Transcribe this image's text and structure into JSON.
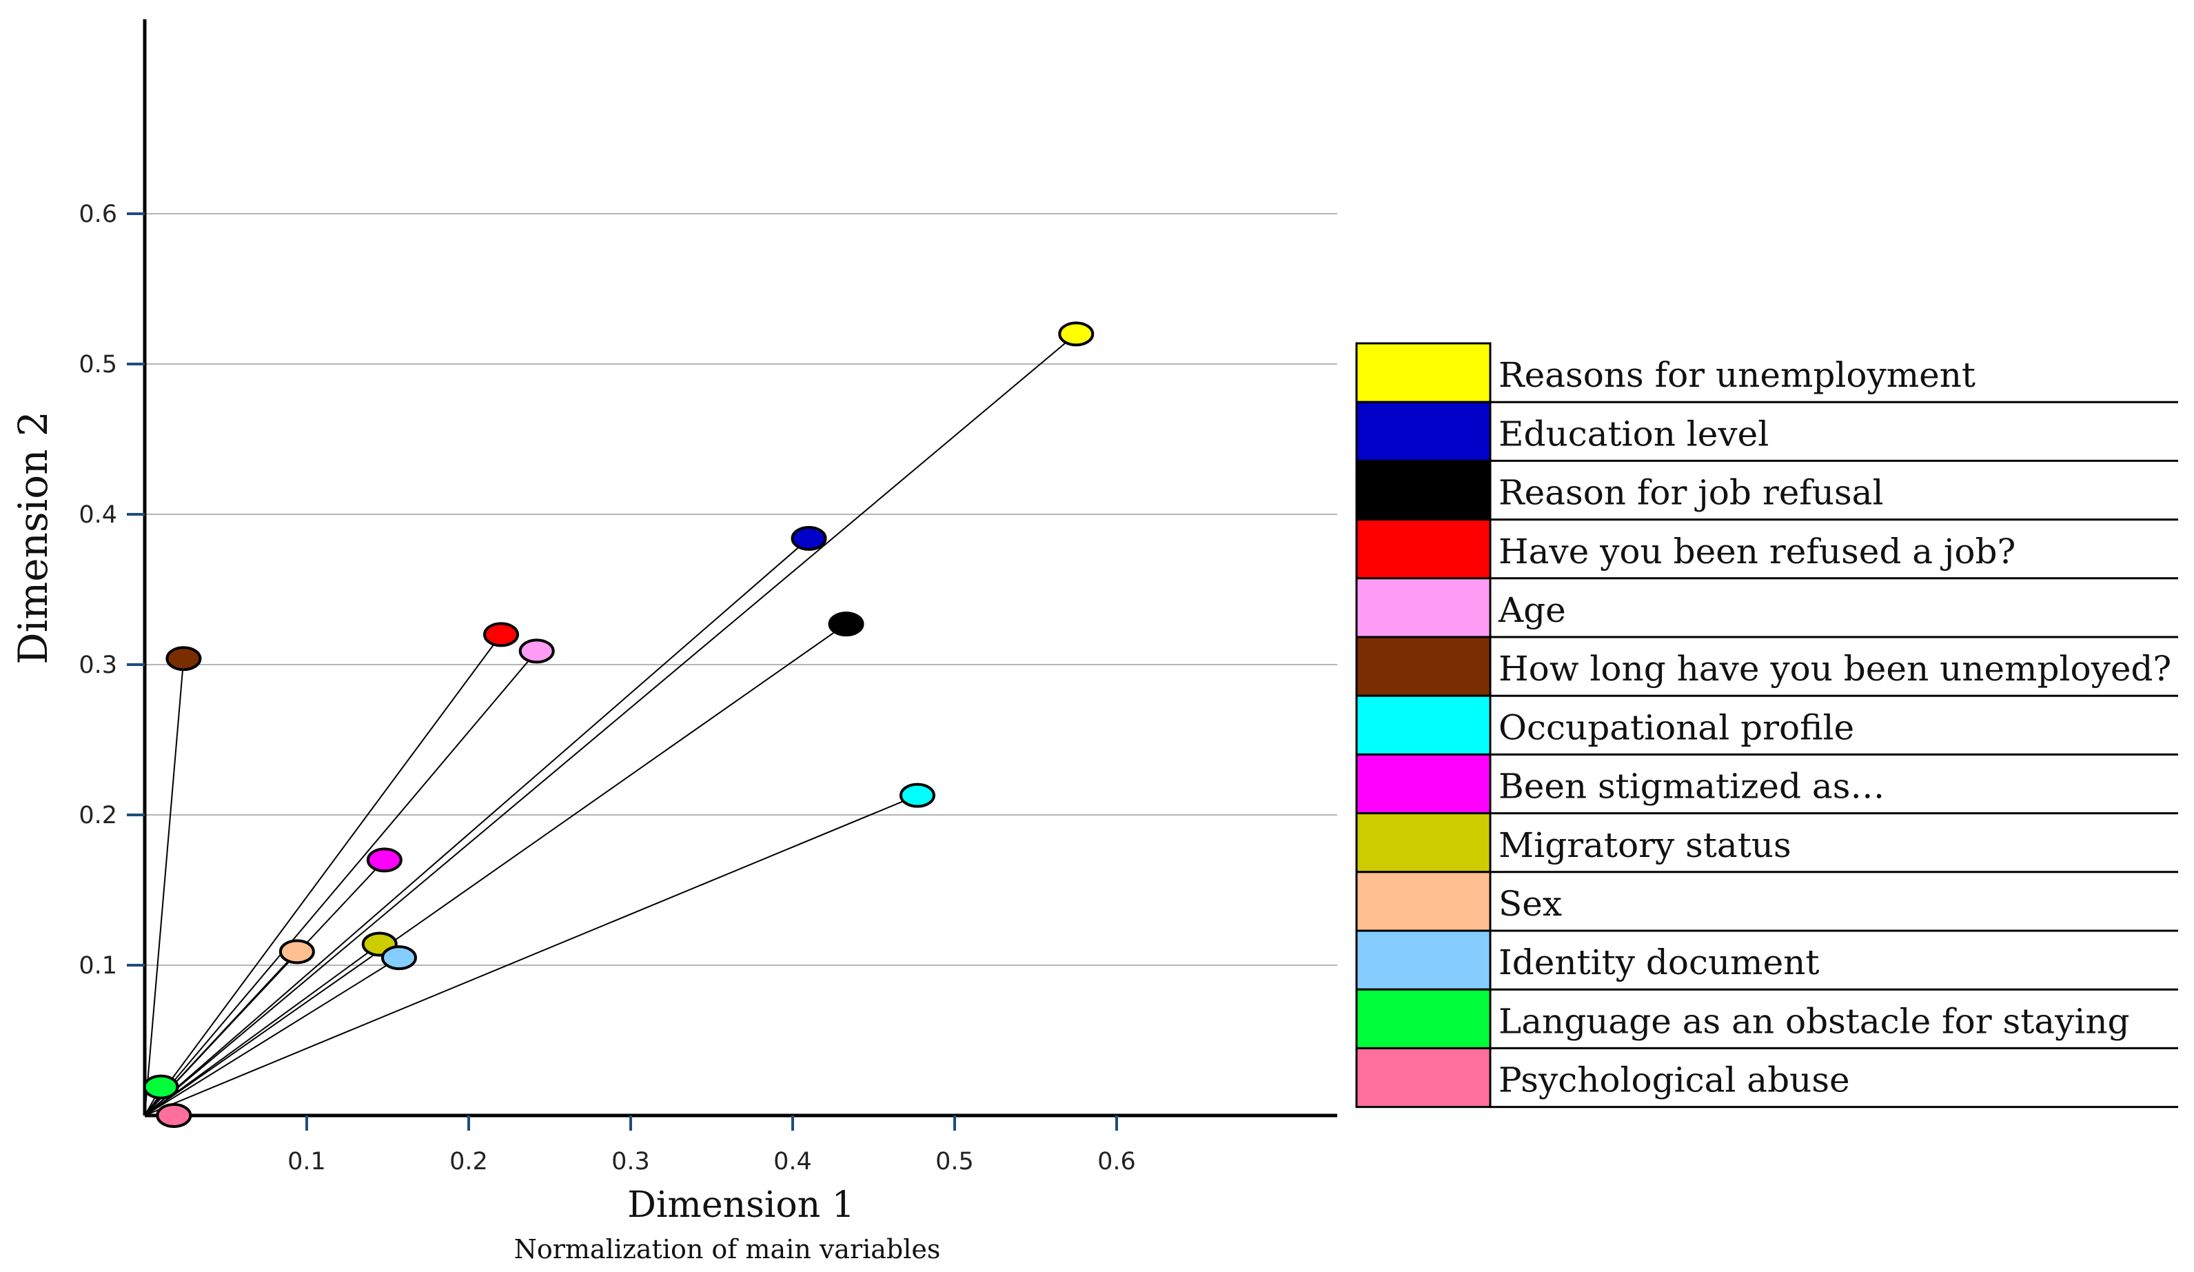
{
  "chart_data": {
    "type": "scatter",
    "subtype": "biplot-vectors",
    "title": "",
    "xlabel": "Dimension  1",
    "xlabel_subtitle": "Normalization of main variables",
    "ylabel": "Dimension  2",
    "xticks": [
      "0.1",
      "0.2",
      "0.3",
      "0.4",
      "0.5",
      "0.6"
    ],
    "yticks": [
      "0.1",
      "0.2",
      "0.3",
      "0.4",
      "0.5",
      "0.6"
    ],
    "grid": "horizontal",
    "legend_position": "right",
    "series": [
      {
        "name": "Reasons for unemployment",
        "x": 0.575,
        "y": 0.52,
        "color": "#ffff00"
      },
      {
        "name": "Education level",
        "x": 0.41,
        "y": 0.384,
        "color": "#0000c8"
      },
      {
        "name": "Reason for job refusal",
        "x": 0.433,
        "y": 0.327,
        "color": "#000000"
      },
      {
        "name": "Have you been refused a job?",
        "x": 0.22,
        "y": 0.32,
        "color": "#ff0000"
      },
      {
        "name": "Age",
        "x": 0.242,
        "y": 0.309,
        "color": "#ff9cf5"
      },
      {
        "name": "How long have you been unemployed?",
        "x": 0.024,
        "y": 0.304,
        "color": "#7a2e00"
      },
      {
        "name": "Occupational profile",
        "x": 0.477,
        "y": 0.213,
        "color": "#00ffff"
      },
      {
        "name": "Been stigmatized as…",
        "x": 0.148,
        "y": 0.17,
        "color": "#ff00ff"
      },
      {
        "name": "Migratory status",
        "x": 0.145,
        "y": 0.114,
        "color": "#cccc00"
      },
      {
        "name": "Sex",
        "x": 0.094,
        "y": 0.109,
        "color": "#ffbf90"
      },
      {
        "name": "Identity document",
        "x": 0.157,
        "y": 0.105,
        "color": "#85cdff"
      },
      {
        "name": "Language as an obstacle for staying",
        "x": 0.01,
        "y": 0.019,
        "color": "#00ff3a"
      },
      {
        "name": "Psychological abuse",
        "x": 0.018,
        "y": 0.0,
        "color": "#ff6f9c"
      }
    ]
  }
}
